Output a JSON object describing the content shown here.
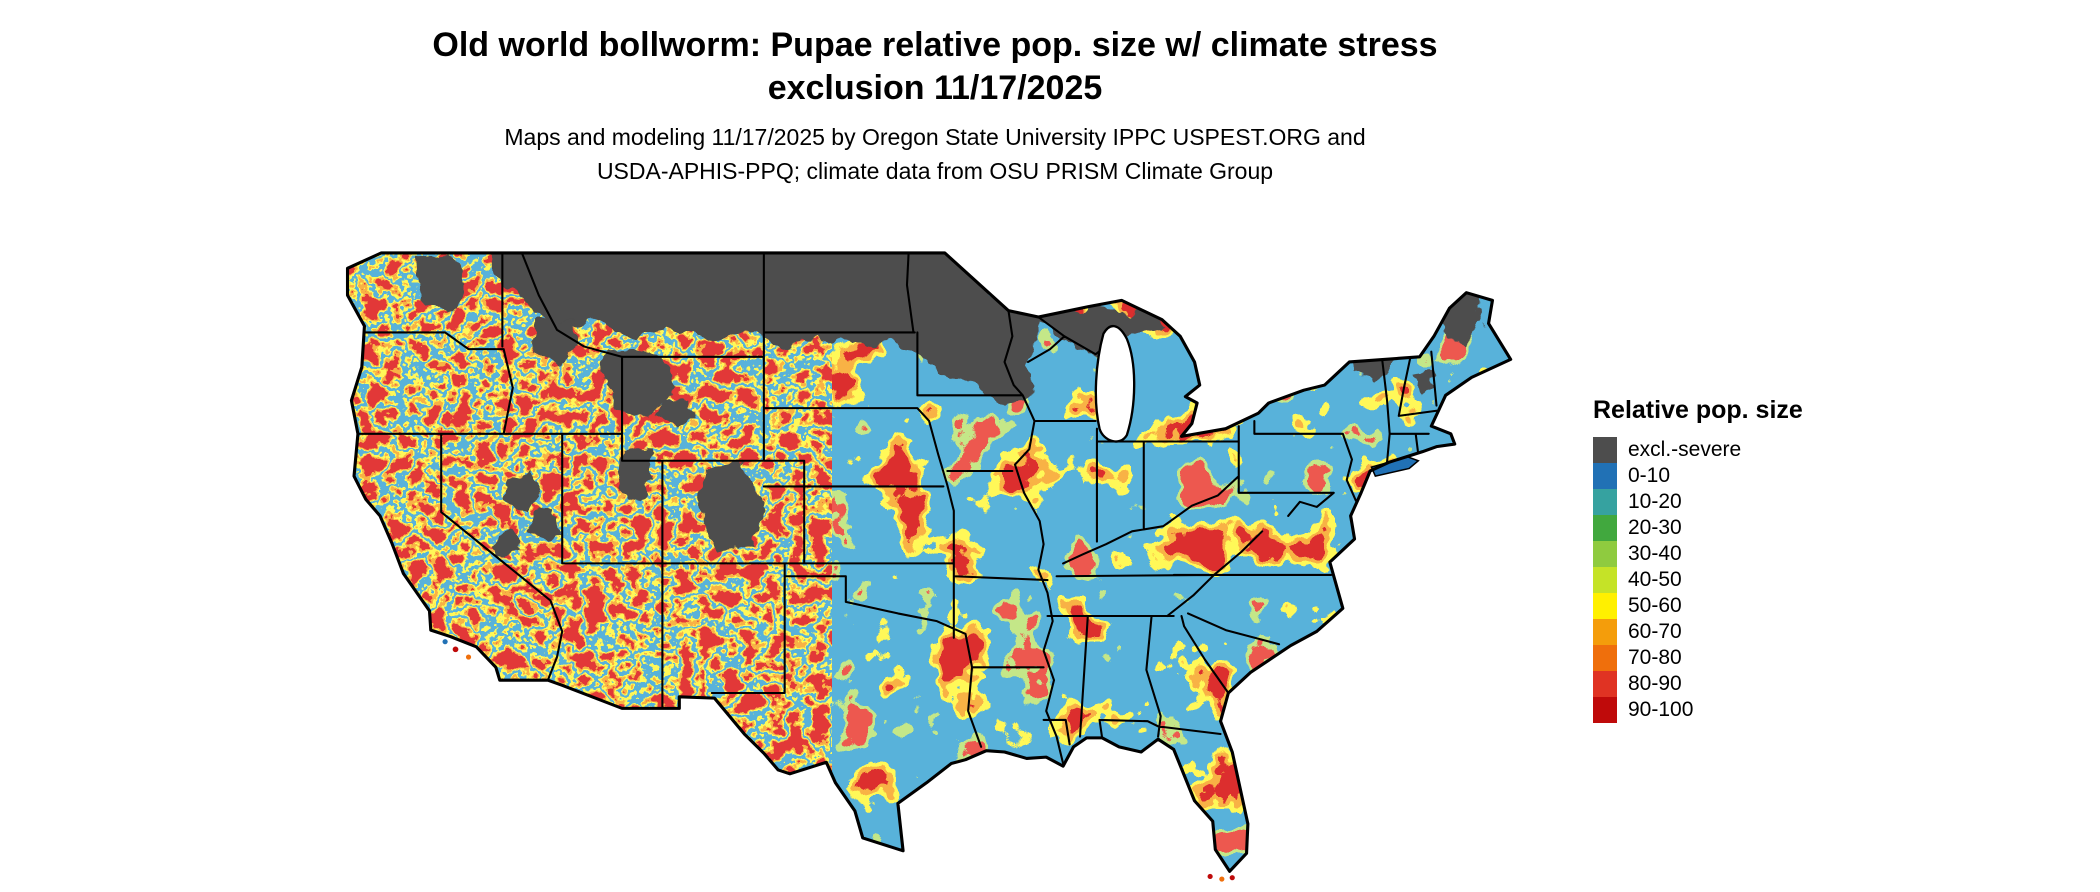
{
  "figure": {
    "title_line1": "Old world bollworm: Pupae relative pop. size w/ climate stress",
    "title_line2": "exclusion 11/17/2025",
    "subtitle_line1": "Maps and modeling 11/17/2025 by Oregon State University IPPC USPEST.ORG and",
    "subtitle_line2": "USDA-APHIS-PPQ; climate data from OSU PRISM Climate Group"
  },
  "legend": {
    "title": "Relative pop. size",
    "items": [
      {
        "label": "excl.-severe",
        "color": "#4D4D4D"
      },
      {
        "label": "0-10",
        "color": "#2171B5"
      },
      {
        "label": "10-20",
        "color": "#36A2A0"
      },
      {
        "label": "20-30",
        "color": "#41A83E"
      },
      {
        "label": "30-40",
        "color": "#8FCB3F"
      },
      {
        "label": "40-50",
        "color": "#C5E327"
      },
      {
        "label": "50-60",
        "color": "#FFF000"
      },
      {
        "label": "60-70",
        "color": "#F49D0B"
      },
      {
        "label": "70-80",
        "color": "#EF6F0C"
      },
      {
        "label": "80-90",
        "color": "#E03323"
      },
      {
        "label": "90-100",
        "color": "#BF0A0A"
      }
    ]
  },
  "map": {
    "region": "continental United States",
    "base_color": "#2171B5",
    "excluded_color": "#4D4D4D",
    "border_color": "#000000",
    "water_color": "#FFFFFF"
  }
}
